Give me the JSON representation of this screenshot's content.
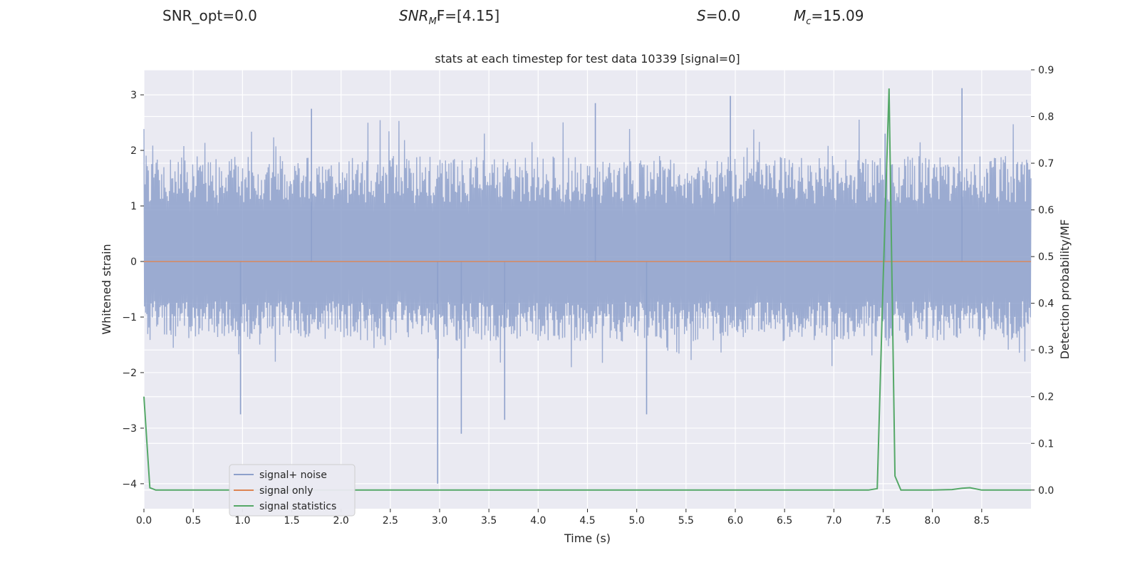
{
  "header": {
    "snr_opt": "SNR_opt=0.0",
    "snr_mf_name": "SNR",
    "snr_mf_sub": "M",
    "snr_mf_tail": "F=[4.15]",
    "s_name": "S",
    "s_value": "=0.0",
    "mc_name": "M",
    "mc_sub": "c",
    "mc_value": "=15.09"
  },
  "chart_data": {
    "type": "line",
    "title": "stats at each timestep for test data 10339 [signal=0]",
    "xlabel": "Time (s)",
    "ylabel": "Whitened strain",
    "y2label": "Detection probability/MF",
    "xlim": [
      0,
      9.0
    ],
    "ylim": [
      -4.45,
      3.45
    ],
    "y2lim": [
      -0.04,
      0.9
    ],
    "xticks": [
      "0.0",
      "0.5",
      "1.0",
      "1.5",
      "2.0",
      "2.5",
      "3.0",
      "3.5",
      "4.0",
      "4.5",
      "5.0",
      "5.5",
      "6.0",
      "6.5",
      "7.0",
      "7.5",
      "8.0",
      "8.5"
    ],
    "yticks": [
      -4,
      -3,
      -2,
      -1,
      0,
      1,
      2,
      3
    ],
    "y2ticks": [
      "0.0",
      "0.1",
      "0.2",
      "0.3",
      "0.4",
      "0.5",
      "0.6",
      "0.7",
      "0.8",
      "0.9"
    ],
    "grid": true,
    "legend_position": "lower-left",
    "colors": {
      "noise": "#8da0cb",
      "signal_only": "#dd8452",
      "statistics": "#55a868",
      "background": "#eaeaf2",
      "grid": "#ffffff"
    },
    "series": [
      {
        "name": "signal+ noise",
        "axis": "left",
        "description_level": "noise",
        "noise_band": [
          -1.3,
          1.9
        ],
        "notable_spikes": [
          {
            "x": 0.98,
            "y": -2.75
          },
          {
            "x": 1.7,
            "y": 2.75
          },
          {
            "x": 2.98,
            "y": -4.0
          },
          {
            "x": 3.22,
            "y": -3.1
          },
          {
            "x": 3.66,
            "y": -2.85
          },
          {
            "x": 4.58,
            "y": 2.85
          },
          {
            "x": 5.95,
            "y": 2.98
          },
          {
            "x": 5.1,
            "y": -2.75
          },
          {
            "x": 8.3,
            "y": 3.12
          },
          {
            "x": 7.52,
            "y": 2.3
          }
        ]
      },
      {
        "name": "signal only",
        "axis": "left",
        "x": [
          0,
          9.0
        ],
        "y": [
          0,
          0
        ]
      },
      {
        "name": "signal statistics",
        "axis": "right",
        "x": [
          0.0,
          0.06,
          0.12,
          0.5,
          1.0,
          2.0,
          3.0,
          4.0,
          5.0,
          6.0,
          7.0,
          7.35,
          7.44,
          7.5,
          7.56,
          7.62,
          7.68,
          7.8,
          8.0,
          8.2,
          8.3,
          8.38,
          8.5,
          9.0
        ],
        "y": [
          0.2,
          0.005,
          0.0,
          0.0,
          0.0,
          0.0,
          0.0,
          0.0,
          0.0,
          0.0,
          0.0,
          0.0,
          0.003,
          0.45,
          0.86,
          0.03,
          0.0,
          0.0,
          0.0,
          0.001,
          0.004,
          0.005,
          0.0,
          0.0
        ]
      }
    ]
  }
}
